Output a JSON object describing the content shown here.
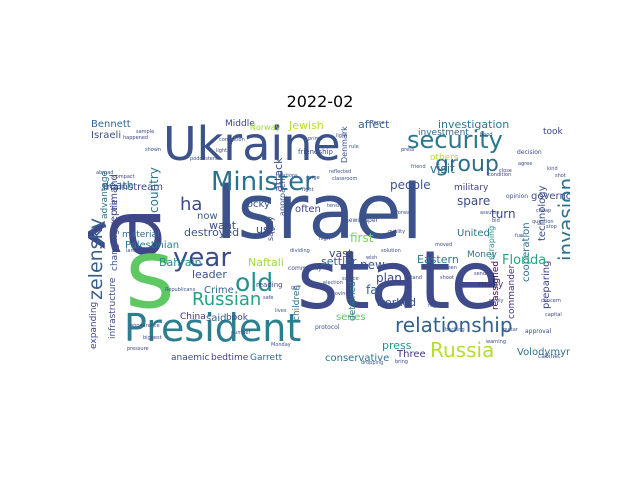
{
  "figure": {
    "title": "2022-02"
  },
  "words": [
    {
      "id": "israel",
      "text": "Israel",
      "color": "#3b528b"
    },
    {
      "id": "state",
      "text": "state",
      "color": "#3e4a89"
    },
    {
      "id": "ukraine",
      "text": "Ukraine",
      "color": "#3b528b"
    },
    {
      "id": "a-circ",
      "text": "â",
      "color": "#3f4788"
    },
    {
      "id": "s",
      "text": "s",
      "color": "#5ec962"
    },
    {
      "id": "president",
      "text": "President",
      "color": "#2c7e8e"
    },
    {
      "id": "minister",
      "text": "Minister",
      "color": "#2c728e"
    },
    {
      "id": "security",
      "text": "security",
      "color": "#2a788e"
    },
    {
      "id": "group",
      "text": "group",
      "color": "#2f6c8e"
    },
    {
      "id": "invasion",
      "text": "invasion",
      "color": "#2c728e"
    },
    {
      "id": "zelensky",
      "text": "zelensky",
      "color": "#355f8d"
    },
    {
      "id": "year",
      "text": "year",
      "color": "#3e4a89"
    },
    {
      "id": "old",
      "text": "old",
      "color": "#21918c"
    },
    {
      "id": "russian",
      "text": "Russian",
      "color": "#20a386"
    },
    {
      "id": "relationship",
      "text": "relationship",
      "color": "#34618d"
    },
    {
      "id": "russia",
      "text": "Russia",
      "color": "#b5de2b"
    },
    {
      "id": "ha",
      "text": "ha",
      "color": "#3e4a89"
    },
    {
      "id": "bennett",
      "text": "Bennett",
      "color": "#31688e"
    },
    {
      "id": "israeli",
      "text": "Israeli",
      "color": "#3b528b"
    },
    {
      "id": "country",
      "text": "country",
      "color": "#2a788e"
    },
    {
      "id": "investigation",
      "text": "investigation",
      "color": "#2a788e"
    },
    {
      "id": "jewish",
      "text": "Jewish",
      "color": "#b8de29"
    },
    {
      "id": "technology",
      "text": "technology",
      "color": "#3b528b"
    },
    {
      "id": "cooperation",
      "text": "cooperation",
      "color": "#2c728e"
    },
    {
      "id": "preparing",
      "text": "preparing",
      "color": "#414487"
    },
    {
      "id": "florida",
      "text": "Florida",
      "color": "#22a884"
    },
    {
      "id": "volodymyr",
      "text": "Volodymyr",
      "color": "#2c728e"
    },
    {
      "id": "commander",
      "text": "commander",
      "color": "#46327e"
    },
    {
      "id": "palestinian",
      "text": "Palestinian",
      "color": "#2c7e8e"
    },
    {
      "id": "leader",
      "text": "leader",
      "color": "#3b528b"
    },
    {
      "id": "naftali",
      "text": "Naftali",
      "color": "#a0da39"
    },
    {
      "id": "crime",
      "text": "Crime",
      "color": "#31688e"
    },
    {
      "id": "destroyed",
      "text": "destroyed",
      "color": "#3b528b"
    },
    {
      "id": "bahrain",
      "text": "Bahrain",
      "color": "#21918c"
    },
    {
      "id": "now",
      "text": "now",
      "color": "#355f8d"
    },
    {
      "id": "want",
      "text": "want",
      "color": "#3e4a89"
    },
    {
      "id": "death",
      "text": "death",
      "color": "#2a788e"
    },
    {
      "id": "mainstream",
      "text": "mainstream",
      "color": "#3e4a89"
    },
    {
      "id": "attack",
      "text": "attack",
      "color": "#3b528b"
    },
    {
      "id": "affect",
      "text": "affect",
      "color": "#34618d"
    },
    {
      "id": "middle",
      "text": "Middle",
      "color": "#414487"
    },
    {
      "id": "eastern",
      "text": "Eastern",
      "color": "#2a788e"
    },
    {
      "id": "united",
      "text": "United",
      "color": "#2c728e"
    },
    {
      "id": "money",
      "text": "Money",
      "color": "#2c728e"
    },
    {
      "id": "people",
      "text": "people",
      "color": "#3b528b"
    },
    {
      "id": "visit",
      "text": "visit",
      "color": "#2c728e"
    },
    {
      "id": "spare",
      "text": "spare",
      "color": "#3e4a89"
    },
    {
      "id": "turn",
      "text": "turn",
      "color": "#3e4a89"
    },
    {
      "id": "first",
      "text": "first",
      "color": "#7ad151"
    },
    {
      "id": "new",
      "text": "new",
      "color": "#3b528b"
    },
    {
      "id": "vast",
      "text": "vast",
      "color": "#414487"
    },
    {
      "id": "settler",
      "text": "settler",
      "color": "#34618d"
    },
    {
      "id": "plan",
      "text": "plan",
      "color": "#3e4a89"
    },
    {
      "id": "far",
      "text": "far",
      "color": "#355f8d"
    },
    {
      "id": "worked",
      "text": "worked",
      "color": "#3b528b"
    },
    {
      "id": "press",
      "text": "press",
      "color": "#21918c"
    },
    {
      "id": "three",
      "text": "Three",
      "color": "#46327e"
    },
    {
      "id": "series",
      "text": "series",
      "color": "#5ec962"
    },
    {
      "id": "conservative",
      "text": "conservative",
      "color": "#2c728e"
    },
    {
      "id": "garrett",
      "text": "Garrett",
      "color": "#31688e"
    },
    {
      "id": "bedtime",
      "text": "bedtime",
      "color": "#414487"
    },
    {
      "id": "anaemic",
      "text": "anaemic",
      "color": "#3e4a89"
    },
    {
      "id": "said",
      "text": "said",
      "color": "#34618d"
    },
    {
      "id": "book",
      "text": "book",
      "color": "#3e4a89"
    },
    {
      "id": "china",
      "text": "China",
      "color": "#46327e"
    },
    {
      "id": "reprimand",
      "text": "reprimand",
      "color": "#414487"
    },
    {
      "id": "expanding",
      "text": "expanding",
      "color": "#414487"
    },
    {
      "id": "infrastructure",
      "text": "infrastructure",
      "color": "#3e4a89"
    },
    {
      "id": "advantage",
      "text": "advantage",
      "color": "#2c728e"
    },
    {
      "id": "changing",
      "text": "changing",
      "color": "#3b528b"
    },
    {
      "id": "tie",
      "text": "tie",
      "color": "#3e4a89"
    },
    {
      "id": "material",
      "text": "material",
      "color": "#31688e"
    },
    {
      "id": "reassigned",
      "text": "reassigned",
      "color": "#440154"
    },
    {
      "id": "many",
      "text": "many",
      "color": "#46327e"
    },
    {
      "id": "military",
      "text": "military",
      "color": "#414487"
    },
    {
      "id": "governor",
      "text": "governor",
      "color": "#3e4a89"
    },
    {
      "id": "investment",
      "text": "investment",
      "color": "#31688e"
    },
    {
      "id": "use",
      "text": "use",
      "color": "#3e4a89"
    },
    {
      "id": "often",
      "text": "often",
      "color": "#414487"
    },
    {
      "id": "rocky",
      "text": "rocky",
      "color": "#3b528b"
    },
    {
      "id": "children",
      "text": "children",
      "color": "#2c728e"
    },
    {
      "id": "detained",
      "text": "detained",
      "color": "#2a788e"
    },
    {
      "id": "safety",
      "text": "safety",
      "color": "#3e4a89"
    },
    {
      "id": "approach",
      "text": "approach",
      "color": "#3b528b"
    },
    {
      "id": "norway",
      "text": "Norway",
      "color": "#a0da39"
    },
    {
      "id": "denmark",
      "text": "Denmark",
      "color": "#3b528b"
    },
    {
      "id": "took",
      "text": "took",
      "color": "#3e4a89"
    },
    {
      "id": "others",
      "text": "others",
      "color": "#b5de2b"
    },
    {
      "id": "scraping",
      "text": "scraping",
      "color": "#21918c"
    },
    {
      "id": "friendship",
      "text": "friendship",
      "color": "#3b528b"
    },
    {
      "id": "reading",
      "text": "reading",
      "color": "#414487"
    },
    {
      "id": "newspaper",
      "text": "newspaper",
      "color": "#3e4a89"
    },
    {
      "id": "community",
      "text": "community",
      "color": "#3e4a89"
    },
    {
      "id": "protocol",
      "text": "protocol",
      "color": "#3b528b"
    },
    {
      "id": "approval",
      "text": "approval",
      "color": "#3e4a89"
    },
    {
      "id": "cabinet",
      "text": "cabinet",
      "color": "#3e4a89"
    },
    {
      "id": "opinion",
      "text": "opinion",
      "color": "#3b528b"
    },
    {
      "id": "decision",
      "text": "decision",
      "color": "#3e4a89"
    },
    {
      "id": "republicans",
      "text": "Republicans",
      "color": "#3b528b"
    },
    {
      "id": "appearance",
      "text": "appearance",
      "color": "#3e4a89"
    },
    {
      "id": "corruption",
      "text": "corruption",
      "color": "#3e4a89"
    },
    {
      "id": "reflected",
      "text": "reflected",
      "color": "#3b528b"
    },
    {
      "id": "condition",
      "text": "condition",
      "color": "#414487"
    },
    {
      "id": "backing",
      "text": "backing",
      "color": "#3b528b"
    },
    {
      "id": "biggest",
      "text": "biggest",
      "color": "#3e4a89"
    },
    {
      "id": "bring",
      "text": "bring",
      "color": "#3e4a89"
    },
    {
      "id": "abroad",
      "text": "abroad",
      "color": "#3b528b"
    },
    {
      "id": "sample",
      "text": "sample",
      "color": "#3e4a89"
    },
    {
      "id": "rule",
      "text": "rule",
      "color": "#3b528b"
    },
    {
      "id": "compact",
      "text": "compact",
      "color": "#414487"
    },
    {
      "id": "fight",
      "text": "fight",
      "color": "#3e4a89"
    },
    {
      "id": "shown",
      "text": "shown",
      "color": "#3b528b"
    },
    {
      "id": "happened",
      "text": "happened",
      "color": "#414487"
    },
    {
      "id": "lights",
      "text": "lights",
      "color": "#3e4a89"
    },
    {
      "id": "classroom",
      "text": "classroom",
      "color": "#3b528b"
    },
    {
      "id": "podcasters",
      "text": "podcasters",
      "color": "#3e4a89"
    },
    {
      "id": "assume",
      "text": "assume",
      "color": "#3b528b"
    },
    {
      "id": "cheap",
      "text": "cheap",
      "color": "#3e4a89"
    },
    {
      "id": "monday",
      "text": "Monday",
      "color": "#3b528b"
    },
    {
      "id": "gulf",
      "text": "gulf",
      "color": "#3e4a89"
    },
    {
      "id": "pressure",
      "text": "pressure",
      "color": "#414487"
    },
    {
      "id": "question",
      "text": "question",
      "color": "#3b528b"
    },
    {
      "id": "warning",
      "text": "warning",
      "color": "#3e4a89"
    },
    {
      "id": "number",
      "text": "number",
      "color": "#3b528b"
    },
    {
      "id": "shoot",
      "text": "shoot",
      "color": "#3e4a89"
    },
    {
      "id": "kind",
      "text": "kind",
      "color": "#3b528b"
    },
    {
      "id": "large",
      "text": "large",
      "color": "#3e4a89"
    },
    {
      "id": "sending",
      "text": "sending",
      "color": "#414487"
    },
    {
      "id": "dropping",
      "text": "dropping",
      "color": "#3b528b"
    },
    {
      "id": "concern",
      "text": "concern",
      "color": "#3e4a89"
    },
    {
      "id": "landed",
      "text": "landed",
      "color": "#3e4a89"
    },
    {
      "id": "region",
      "text": "region",
      "color": "#3b528b"
    },
    {
      "id": "rarely",
      "text": "rarely",
      "color": "#3e4a89"
    },
    {
      "id": "tension",
      "text": "tension",
      "color": "#3b528b"
    },
    {
      "id": "high",
      "text": "high",
      "color": "#3e4a89"
    },
    {
      "id": "hand",
      "text": "hand",
      "color": "#3b528b"
    },
    {
      "id": "force",
      "text": "force",
      "color": "#3e4a89"
    },
    {
      "id": "forward",
      "text": "forward",
      "color": "#3b528b"
    },
    {
      "id": "quality",
      "text": "quality",
      "color": "#3e4a89"
    },
    {
      "id": "guitar",
      "text": "guitar",
      "color": "#3b528b"
    },
    {
      "id": "capital",
      "text": "capital",
      "color": "#3e4a89"
    },
    {
      "id": "source",
      "text": "source",
      "color": "#3b528b"
    },
    {
      "id": "stand",
      "text": "stand",
      "color": "#3e4a89"
    },
    {
      "id": "election",
      "text": "election",
      "color": "#3b528b"
    },
    {
      "id": "prime",
      "text": "prime",
      "color": "#3e4a89"
    },
    {
      "id": "friend",
      "text": "friend",
      "color": "#3b528b"
    },
    {
      "id": "close",
      "text": "close",
      "color": "#3e4a89"
    },
    {
      "id": "agree",
      "text": "agree",
      "color": "#3b528b"
    },
    {
      "id": "press2",
      "text": "press",
      "color": "#3e4a89"
    },
    {
      "id": "light",
      "text": "light",
      "color": "#3b528b"
    },
    {
      "id": "stop",
      "text": "stop",
      "color": "#3e4a89"
    },
    {
      "id": "bid",
      "text": "bid",
      "color": "#3b528b"
    },
    {
      "id": "moved",
      "text": "moved",
      "color": "#3e4a89"
    },
    {
      "id": "seen",
      "text": "seen",
      "color": "#3b528b"
    },
    {
      "id": "wish",
      "text": "wish",
      "color": "#3e4a89"
    },
    {
      "id": "relations",
      "text": "relations",
      "color": "#3b528b"
    },
    {
      "id": "safe",
      "text": "safe",
      "color": "#3e4a89"
    },
    {
      "id": "lives",
      "text": "lives",
      "color": "#3b528b"
    },
    {
      "id": "moving",
      "text": "moving",
      "color": "#3e4a89"
    },
    {
      "id": "dividing",
      "text": "dividing",
      "color": "#3b528b"
    },
    {
      "id": "solution",
      "text": "solution",
      "color": "#3e4a89"
    },
    {
      "id": "fuel",
      "text": "fuel",
      "color": "#3b528b"
    },
    {
      "id": "shot",
      "text": "shot",
      "color": "#3e4a89"
    }
  ]
}
